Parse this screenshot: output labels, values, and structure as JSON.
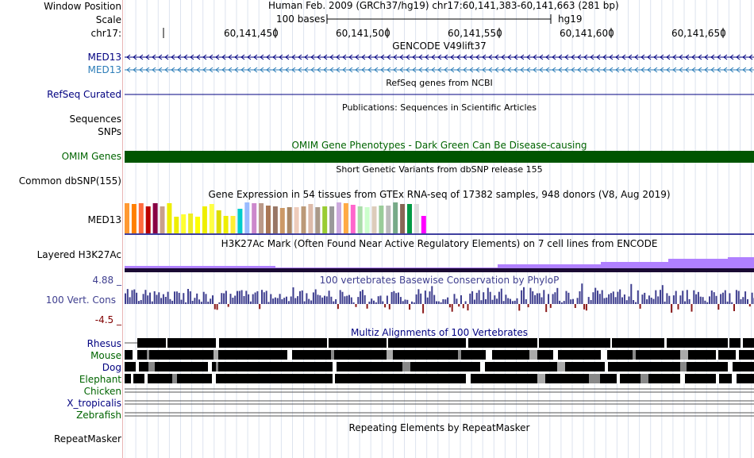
{
  "header": {
    "window_position_label": "Window Position",
    "window_position_value": "Human Feb. 2009 (GRCh37/hg19)   chr17:60,141,383-60,141,663 (281 bp)",
    "scale_label": "Scale",
    "scale_text": "100 bases",
    "scale_assembly": "hg19",
    "chrom_label": "chr17:",
    "coordinates": [
      "60,141,450",
      "60,141,500",
      "60,141,550",
      "60,141,600",
      "60,141,650"
    ]
  },
  "tracks": {
    "gencode": {
      "title": "GENCODE V49lift37",
      "items": [
        "MED13",
        "MED13"
      ]
    },
    "refseq": {
      "title": "RefSeq genes from NCBI",
      "label": "RefSeq Curated"
    },
    "publications": {
      "title": "Publications: Sequences in Scientific Articles",
      "labels": [
        "Sequences",
        "SNPs"
      ]
    },
    "omim": {
      "title": "OMIM Gene Phenotypes - Dark Green Can Be Disease-causing",
      "label": "OMIM Genes"
    },
    "dbsnp": {
      "title": "Short Genetic Variants from dbSNP release 155",
      "label": "Common dbSNP(155)"
    },
    "gtex": {
      "title": "Gene Expression in 54 tissues from GTEx RNA-seq of 17382 samples, 948 donors (V8, Aug 2019)",
      "label": "MED13"
    },
    "h3k27ac": {
      "title": "H3K27Ac Mark (Often Found Near Active Regulatory Elements) on 7 cell lines from ENCODE",
      "label": "Layered H3K27Ac"
    },
    "conservation": {
      "title": "100 vertebrates Basewise Conservation by PhyloP",
      "label": "100 Vert. Cons",
      "max": "4.88 _",
      "min": "-4.5 _"
    },
    "multiz": {
      "title": "Multiz Alignments of 100 Vertebrates",
      "species": [
        "Rhesus",
        "Mouse",
        "Dog",
        "Elephant",
        "Chicken",
        "X_tropicalis",
        "Zebrafish"
      ]
    },
    "repeatmasker": {
      "title": "Repeating Elements by RepeatMasker",
      "label": "RepeatMasker"
    }
  },
  "colors": {
    "omim_bar": "#005500",
    "gencode_blue": "#000080",
    "conservation_pos": "#3f3f8f",
    "conservation_neg": "#8b1a1a",
    "h3k27ac": "#9b59f6"
  }
}
